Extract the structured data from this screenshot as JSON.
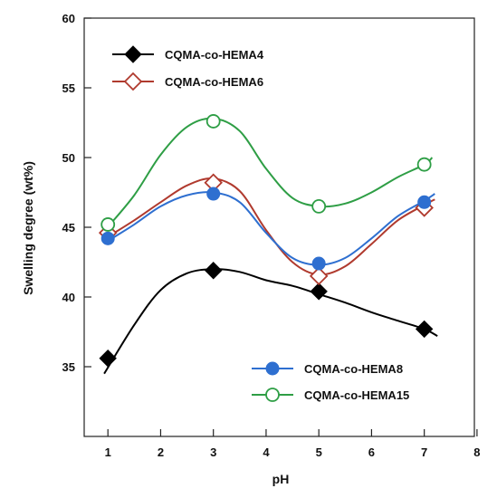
{
  "chart_data": {
    "type": "line",
    "xlabel": "pH",
    "ylabel": "Swelling degree (wt%)",
    "xlim": [
      0.55,
      7.95
    ],
    "ylim": [
      30,
      60
    ],
    "x_ticks": [
      1,
      2,
      3,
      4,
      5,
      6,
      7,
      8
    ],
    "y_ticks": [
      35,
      40,
      45,
      50,
      55,
      60
    ],
    "legend_placement": [
      "top-left",
      "bottom-right"
    ],
    "series": [
      {
        "name": "CQMA-co-HEMA4",
        "marker": "filled-diamond",
        "color": "#000000",
        "x": [
          1,
          3,
          5,
          7
        ],
        "y": [
          35.6,
          41.9,
          40.4,
          37.7
        ],
        "curve": [
          [
            0.93,
            34.5
          ],
          [
            1.5,
            38.0
          ],
          [
            2.0,
            40.5
          ],
          [
            2.5,
            41.7
          ],
          [
            3.0,
            42.0
          ],
          [
            3.5,
            41.8
          ],
          [
            4.0,
            41.2
          ],
          [
            4.5,
            40.8
          ],
          [
            5.0,
            40.2
          ],
          [
            5.5,
            39.6
          ],
          [
            6.0,
            38.9
          ],
          [
            6.5,
            38.3
          ],
          [
            7.0,
            37.7
          ],
          [
            7.25,
            37.2
          ]
        ]
      },
      {
        "name": "CQMA-co-HEMA6",
        "marker": "open-diamond",
        "color": "#b03a2e",
        "x": [
          1,
          3,
          5,
          7
        ],
        "y": [
          44.6,
          48.2,
          41.5,
          46.4
        ],
        "curve": [
          [
            0.95,
            44.2
          ],
          [
            1.5,
            45.5
          ],
          [
            2.0,
            46.8
          ],
          [
            2.5,
            48.0
          ],
          [
            3.0,
            48.5
          ],
          [
            3.5,
            47.6
          ],
          [
            4.0,
            44.8
          ],
          [
            4.5,
            42.5
          ],
          [
            5.0,
            41.6
          ],
          [
            5.5,
            42.2
          ],
          [
            6.0,
            43.8
          ],
          [
            6.5,
            45.5
          ],
          [
            7.0,
            46.6
          ],
          [
            7.2,
            47.0
          ]
        ]
      },
      {
        "name": "CQMA-co-HEMA8",
        "marker": "filled-circle",
        "color": "#2e6fd0",
        "x": [
          1,
          3,
          5,
          7
        ],
        "y": [
          44.2,
          47.4,
          42.4,
          46.8
        ],
        "curve": [
          [
            0.95,
            43.9
          ],
          [
            1.5,
            45.2
          ],
          [
            2.0,
            46.5
          ],
          [
            2.5,
            47.3
          ],
          [
            3.0,
            47.5
          ],
          [
            3.5,
            46.8
          ],
          [
            4.0,
            44.6
          ],
          [
            4.5,
            42.8
          ],
          [
            5.0,
            42.3
          ],
          [
            5.5,
            42.8
          ],
          [
            6.0,
            44.2
          ],
          [
            6.5,
            45.8
          ],
          [
            7.0,
            46.9
          ],
          [
            7.2,
            47.4
          ]
        ]
      },
      {
        "name": "CQMA-co-HEMA15",
        "marker": "open-circle",
        "color": "#2e9e45",
        "x": [
          1,
          3,
          5,
          7
        ],
        "y": [
          45.2,
          52.6,
          46.5,
          49.5
        ],
        "curve": [
          [
            0.97,
            44.9
          ],
          [
            1.5,
            47.3
          ],
          [
            2.0,
            50.2
          ],
          [
            2.5,
            52.2
          ],
          [
            3.0,
            52.8
          ],
          [
            3.5,
            51.9
          ],
          [
            4.0,
            49.2
          ],
          [
            4.5,
            47.1
          ],
          [
            5.0,
            46.5
          ],
          [
            5.5,
            46.7
          ],
          [
            6.0,
            47.5
          ],
          [
            6.5,
            48.6
          ],
          [
            7.0,
            49.5
          ],
          [
            7.15,
            50.0
          ]
        ]
      }
    ]
  }
}
